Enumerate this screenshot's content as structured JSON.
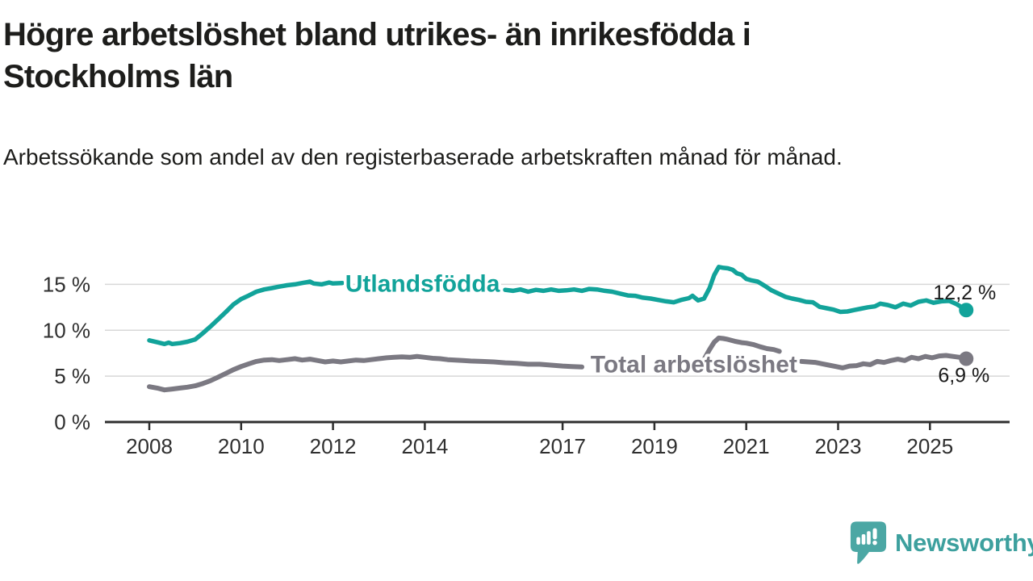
{
  "header": {
    "title": "Högre arbetslöshet bland utrikes- än inrikesfödda i\nStockholms län",
    "subtitle": "Arbetssökande som andel av den registerbaserade arbetskraften månad för månad."
  },
  "footer": {
    "brand": "Newsworthy",
    "logo_icon": "newsworthy-speech-bubble-chart-icon"
  },
  "colors": {
    "series_foreign_born": "#12a39a",
    "series_total": "#7b7982",
    "axis": "#2f2f2f",
    "gridline": "#d8d8d8",
    "annotation_text": "#1a1a1a",
    "logo": "#3da09e",
    "logo_bubble": "#4ba7a4"
  },
  "chart_data": {
    "type": "line",
    "title": "Högre arbetslöshet bland utrikes- än inrikesfödda i Stockholms län",
    "subtitle": "Arbetssökande som andel av den registerbaserade arbetskraften månad för månad.",
    "unit": "%",
    "grid": "horizontal",
    "legend_position": "inline-labels",
    "x_axis": {
      "ticks": [
        {
          "value": 2008,
          "label": "2008"
        },
        {
          "value": 2010,
          "label": "2010"
        },
        {
          "value": 2012,
          "label": "2012"
        },
        {
          "value": 2014,
          "label": "2014"
        },
        {
          "value": 2017,
          "label": "2017"
        },
        {
          "value": 2019,
          "label": "2019"
        },
        {
          "value": 2021,
          "label": "2021"
        },
        {
          "value": 2023,
          "label": "2023"
        },
        {
          "value": 2025,
          "label": "2025"
        }
      ],
      "range": [
        2007.0,
        2026.7
      ]
    },
    "y_axis": {
      "ticks": [
        {
          "value": 0,
          "label": "0 %"
        },
        {
          "value": 5,
          "label": "5 %"
        },
        {
          "value": 10,
          "label": "10 %"
        },
        {
          "value": 15,
          "label": "15 %"
        }
      ],
      "range": [
        0,
        17.5
      ]
    },
    "series": [
      {
        "name": "Utlandsfödda",
        "color": "#12a39a",
        "line_width": 5.5,
        "label_pos": {
          "x": 2013.95,
          "y": 15.1
        },
        "end_value_label": "12,2 %",
        "end_label_offset": {
          "dx": 37,
          "dy": -13
        },
        "segments": [
          [
            [
              2008.0,
              8.9
            ],
            [
              2008.17,
              8.7
            ],
            [
              2008.33,
              8.5
            ],
            [
              2008.42,
              8.65
            ],
            [
              2008.5,
              8.5
            ],
            [
              2008.67,
              8.6
            ],
            [
              2008.83,
              8.75
            ],
            [
              2009.0,
              9.0
            ],
            [
              2009.17,
              9.7
            ],
            [
              2009.33,
              10.4
            ],
            [
              2009.5,
              11.2
            ],
            [
              2009.67,
              12.0
            ],
            [
              2009.83,
              12.8
            ],
            [
              2010.0,
              13.4
            ],
            [
              2010.17,
              13.8
            ],
            [
              2010.33,
              14.2
            ],
            [
              2010.5,
              14.45
            ],
            [
              2010.67,
              14.6
            ],
            [
              2010.83,
              14.75
            ],
            [
              2011.0,
              14.9
            ],
            [
              2011.17,
              15.0
            ],
            [
              2011.33,
              15.15
            ],
            [
              2011.5,
              15.3
            ],
            [
              2011.58,
              15.1
            ],
            [
              2011.75,
              15.0
            ],
            [
              2011.92,
              15.2
            ],
            [
              2012.0,
              15.1
            ],
            [
              2012.2,
              15.15
            ]
          ],
          [
            [
              2015.75,
              14.4
            ],
            [
              2015.92,
              14.3
            ],
            [
              2016.08,
              14.45
            ],
            [
              2016.25,
              14.2
            ],
            [
              2016.42,
              14.4
            ],
            [
              2016.58,
              14.3
            ],
            [
              2016.75,
              14.45
            ],
            [
              2016.92,
              14.3
            ],
            [
              2017.08,
              14.35
            ],
            [
              2017.25,
              14.45
            ],
            [
              2017.42,
              14.3
            ],
            [
              2017.58,
              14.5
            ],
            [
              2017.75,
              14.45
            ],
            [
              2017.92,
              14.3
            ],
            [
              2018.08,
              14.2
            ],
            [
              2018.25,
              14.0
            ],
            [
              2018.42,
              13.8
            ],
            [
              2018.58,
              13.75
            ],
            [
              2018.75,
              13.55
            ],
            [
              2018.92,
              13.45
            ],
            [
              2019.08,
              13.3
            ],
            [
              2019.25,
              13.15
            ],
            [
              2019.42,
              13.05
            ],
            [
              2019.58,
              13.3
            ],
            [
              2019.75,
              13.5
            ],
            [
              2019.83,
              13.75
            ],
            [
              2019.95,
              13.25
            ],
            [
              2020.08,
              13.45
            ],
            [
              2020.2,
              14.6
            ],
            [
              2020.3,
              16.0
            ],
            [
              2020.4,
              16.9
            ],
            [
              2020.5,
              16.8
            ],
            [
              2020.6,
              16.75
            ],
            [
              2020.7,
              16.6
            ],
            [
              2020.8,
              16.2
            ],
            [
              2020.9,
              16.05
            ],
            [
              2021.0,
              15.6
            ],
            [
              2021.1,
              15.45
            ],
            [
              2021.25,
              15.3
            ],
            [
              2021.4,
              14.85
            ],
            [
              2021.55,
              14.35
            ],
            [
              2021.7,
              14.0
            ],
            [
              2021.85,
              13.65
            ],
            [
              2022.0,
              13.45
            ],
            [
              2022.15,
              13.3
            ],
            [
              2022.3,
              13.1
            ],
            [
              2022.45,
              13.05
            ],
            [
              2022.6,
              12.55
            ],
            [
              2022.75,
              12.4
            ],
            [
              2022.9,
              12.25
            ],
            [
              2023.05,
              12.0
            ],
            [
              2023.2,
              12.05
            ],
            [
              2023.35,
              12.2
            ],
            [
              2023.5,
              12.35
            ],
            [
              2023.65,
              12.5
            ],
            [
              2023.8,
              12.6
            ],
            [
              2023.92,
              12.9
            ],
            [
              2024.08,
              12.75
            ],
            [
              2024.25,
              12.5
            ],
            [
              2024.42,
              12.9
            ],
            [
              2024.58,
              12.7
            ],
            [
              2024.75,
              13.1
            ],
            [
              2024.92,
              13.25
            ],
            [
              2025.08,
              13.0
            ],
            [
              2025.25,
              13.15
            ],
            [
              2025.42,
              13.2
            ],
            [
              2025.58,
              12.85
            ],
            [
              2025.79,
              12.2
            ]
          ]
        ]
      },
      {
        "name": "Total arbetslöshet",
        "color": "#7b7982",
        "line_width": 6,
        "label_pos": {
          "x": 2019.86,
          "y": 6.27
        },
        "end_value_label": "6,9 %",
        "end_label_offset": {
          "dx": 29,
          "dy": 29
        },
        "segments": [
          [
            [
              2008.0,
              3.85
            ],
            [
              2008.17,
              3.7
            ],
            [
              2008.33,
              3.5
            ],
            [
              2008.5,
              3.6
            ],
            [
              2008.67,
              3.7
            ],
            [
              2008.83,
              3.8
            ],
            [
              2009.0,
              3.95
            ],
            [
              2009.17,
              4.2
            ],
            [
              2009.33,
              4.5
            ],
            [
              2009.5,
              4.9
            ],
            [
              2009.67,
              5.3
            ],
            [
              2009.83,
              5.7
            ],
            [
              2010.0,
              6.05
            ],
            [
              2010.17,
              6.35
            ],
            [
              2010.33,
              6.6
            ],
            [
              2010.5,
              6.75
            ],
            [
              2010.67,
              6.8
            ],
            [
              2010.83,
              6.7
            ],
            [
              2011.0,
              6.8
            ],
            [
              2011.17,
              6.9
            ],
            [
              2011.33,
              6.75
            ],
            [
              2011.5,
              6.85
            ],
            [
              2011.67,
              6.7
            ],
            [
              2011.83,
              6.55
            ],
            [
              2012.0,
              6.65
            ],
            [
              2012.17,
              6.55
            ],
            [
              2012.33,
              6.65
            ],
            [
              2012.5,
              6.75
            ],
            [
              2012.67,
              6.7
            ],
            [
              2012.83,
              6.8
            ],
            [
              2013.0,
              6.9
            ],
            [
              2013.17,
              7.0
            ],
            [
              2013.33,
              7.05
            ],
            [
              2013.5,
              7.1
            ],
            [
              2013.67,
              7.05
            ],
            [
              2013.83,
              7.15
            ],
            [
              2014.0,
              7.05
            ],
            [
              2014.17,
              6.95
            ],
            [
              2014.33,
              6.9
            ],
            [
              2014.5,
              6.8
            ],
            [
              2014.67,
              6.75
            ],
            [
              2014.83,
              6.7
            ],
            [
              2015.0,
              6.65
            ],
            [
              2015.25,
              6.6
            ],
            [
              2015.5,
              6.55
            ],
            [
              2015.75,
              6.45
            ],
            [
              2016.0,
              6.4
            ],
            [
              2016.25,
              6.3
            ],
            [
              2016.5,
              6.3
            ],
            [
              2016.75,
              6.2
            ],
            [
              2017.0,
              6.1
            ],
            [
              2017.2,
              6.05
            ],
            [
              2017.42,
              6.0
            ]
          ],
          [
            [
              2020.1,
              7.0
            ],
            [
              2020.2,
              7.9
            ],
            [
              2020.3,
              8.7
            ],
            [
              2020.4,
              9.15
            ],
            [
              2020.5,
              9.1
            ],
            [
              2020.6,
              9.0
            ],
            [
              2020.75,
              8.8
            ],
            [
              2020.9,
              8.65
            ],
            [
              2021.0,
              8.6
            ],
            [
              2021.15,
              8.45
            ],
            [
              2021.3,
              8.2
            ],
            [
              2021.45,
              8.0
            ],
            [
              2021.6,
              7.9
            ],
            [
              2021.72,
              7.7
            ]
          ],
          [
            [
              2022.2,
              6.6
            ],
            [
              2022.35,
              6.55
            ],
            [
              2022.5,
              6.5
            ],
            [
              2022.65,
              6.35
            ],
            [
              2022.8,
              6.2
            ],
            [
              2022.95,
              6.05
            ],
            [
              2023.1,
              5.9
            ],
            [
              2023.25,
              6.1
            ],
            [
              2023.4,
              6.15
            ],
            [
              2023.55,
              6.35
            ],
            [
              2023.7,
              6.25
            ],
            [
              2023.85,
              6.6
            ],
            [
              2024.0,
              6.5
            ],
            [
              2024.15,
              6.7
            ],
            [
              2024.3,
              6.85
            ],
            [
              2024.45,
              6.7
            ],
            [
              2024.6,
              7.05
            ],
            [
              2024.75,
              6.9
            ],
            [
              2024.9,
              7.15
            ],
            [
              2025.05,
              7.0
            ],
            [
              2025.2,
              7.2
            ],
            [
              2025.35,
              7.25
            ],
            [
              2025.5,
              7.15
            ],
            [
              2025.65,
              7.05
            ],
            [
              2025.79,
              6.9
            ]
          ]
        ]
      }
    ]
  }
}
